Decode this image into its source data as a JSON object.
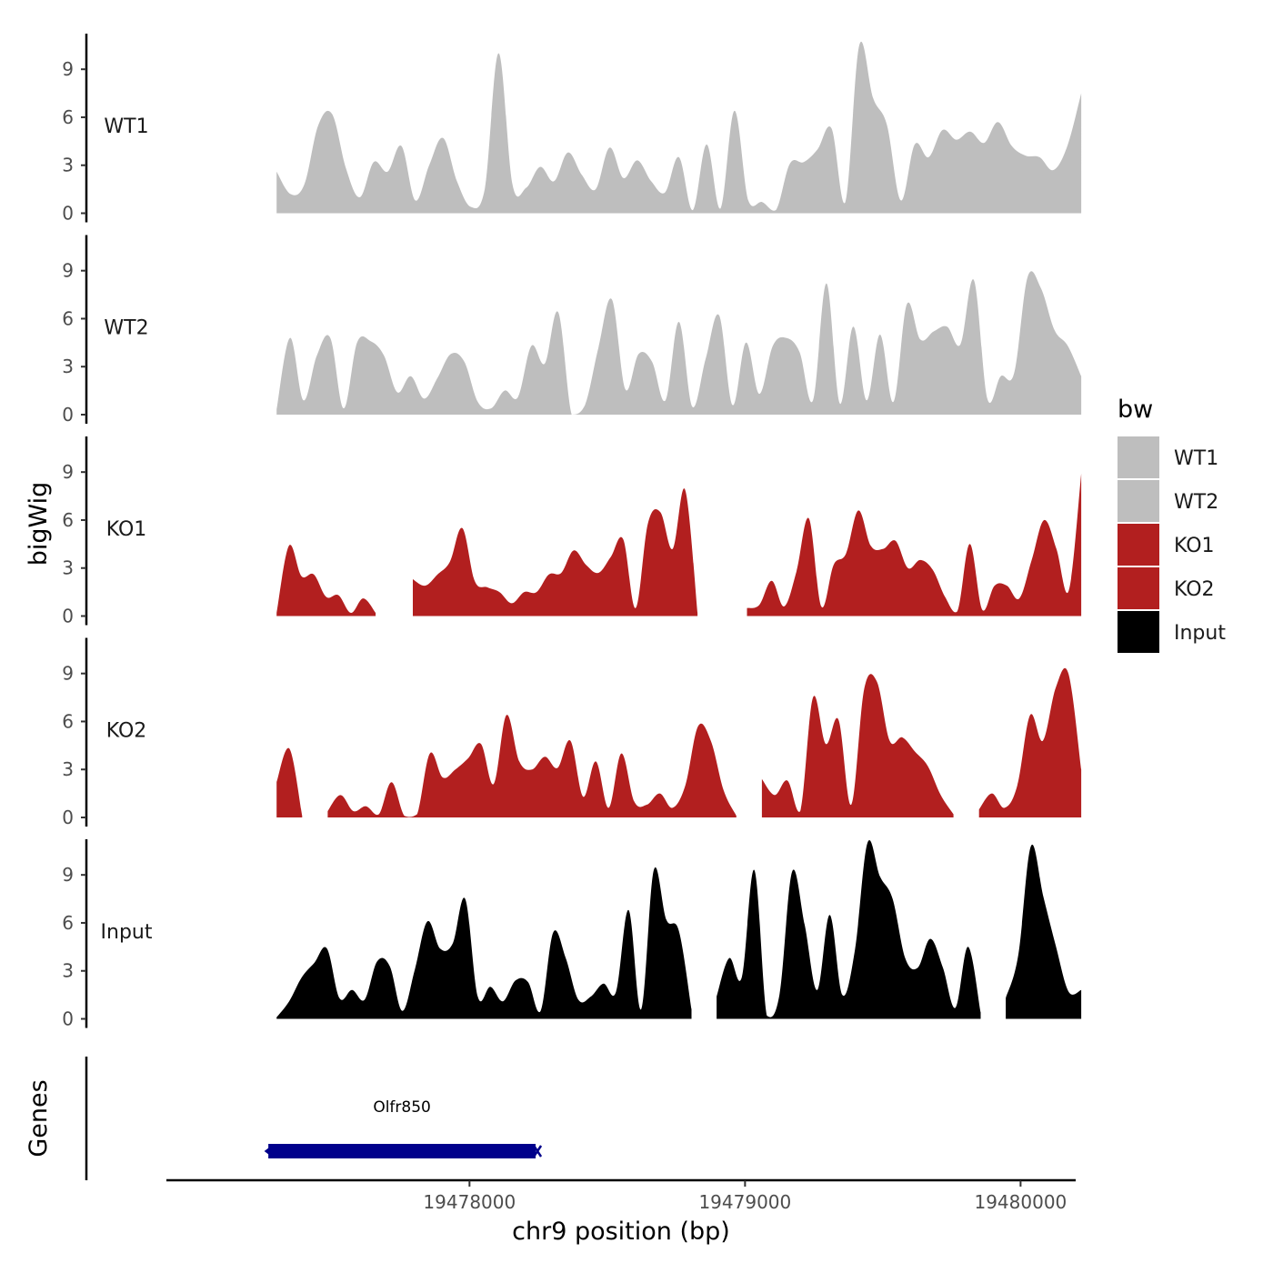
{
  "chart_data": {
    "type": "area",
    "title": "",
    "xlabel": "chr9 position (bp)",
    "ylabel": "bigWig",
    "genes_label": "Genes",
    "xlim": [
      19476900,
      19480200
    ],
    "x_ticks": [
      19478000,
      19479000,
      19480000
    ],
    "x_tick_labels": [
      "19478000",
      "19479000",
      "19480000"
    ],
    "ylim": [
      0,
      11
    ],
    "y_ticks": [
      0,
      3,
      6,
      9
    ],
    "y_tick_labels": [
      "0",
      "3",
      "6",
      "9"
    ],
    "x_start": 19477300,
    "x_end": 19480220,
    "sample_step_bp": 73,
    "tracks": [
      {
        "name": "WT1",
        "color": "#BEBEBE",
        "values": [
          2.6,
          1.2,
          1.8,
          5.5,
          6.2,
          2.8,
          1.0,
          3.2,
          2.6,
          4.2,
          0.8,
          3.0,
          4.7,
          2.0,
          0.4,
          1.5,
          10.0,
          1.8,
          1.6,
          2.9,
          2.0,
          3.8,
          2.4,
          1.5,
          4.1,
          2.2,
          3.3,
          2.0,
          1.3,
          3.5,
          0.2,
          4.3,
          0.3,
          6.4,
          0.8,
          0.7,
          0.2,
          3.1,
          3.2,
          4.0,
          5.3,
          0.7,
          10.5,
          7.2,
          5.5,
          0.8,
          4.3,
          3.5,
          5.2,
          4.6,
          5.1,
          4.4,
          5.7,
          4.2,
          3.6,
          3.5,
          2.7,
          4.2,
          7.5
        ]
      },
      {
        "name": "WT2",
        "color": "#BEBEBE",
        "values": [
          0.3,
          4.8,
          0.9,
          3.7,
          4.8,
          0.4,
          4.5,
          4.6,
          3.7,
          1.4,
          2.4,
          1.0,
          2.3,
          3.8,
          3.3,
          0.8,
          0.4,
          1.5,
          1.1,
          4.3,
          3.2,
          6.4,
          0.0,
          0.6,
          4.2,
          7.2,
          1.6,
          3.8,
          3.3,
          0.9,
          5.8,
          0.5,
          3.5,
          6.2,
          0.6,
          4.5,
          1.3,
          4.3,
          4.8,
          3.9,
          0.9,
          8.2,
          0.7,
          5.5,
          0.9,
          5.0,
          0.8,
          6.9,
          4.7,
          5.2,
          5.5,
          4.4,
          8.4,
          1.0,
          2.4,
          2.6,
          8.6,
          7.9,
          5.3,
          4.3,
          2.4
        ]
      },
      {
        "name": "KO1",
        "color": "#B21F1F",
        "values": [
          0.2,
          4.4,
          2.5,
          2.6,
          1.2,
          1.3,
          0.2,
          1.1,
          0.2,
          null,
          null,
          2.3,
          1.9,
          2.6,
          3.4,
          5.5,
          2.2,
          1.8,
          1.5,
          0.8,
          1.5,
          1.5,
          2.6,
          2.7,
          4.1,
          3.2,
          2.7,
          3.7,
          4.8,
          0.5,
          5.8,
          6.5,
          4.2,
          7.9,
          0.2,
          null,
          null,
          null,
          0.5,
          0.7,
          2.2,
          0.6,
          2.8,
          6.1,
          0.6,
          3.2,
          3.9,
          6.6,
          4.4,
          4.2,
          4.7,
          3.0,
          3.5,
          2.9,
          1.2,
          0.3,
          4.5,
          0.4,
          1.9,
          1.9,
          1.1,
          3.5,
          6.0,
          4.2,
          1.6,
          8.9
        ]
      },
      {
        "name": "KO2",
        "color": "#B21F1F",
        "values": [
          2.2,
          4.3,
          0.1,
          null,
          0.4,
          1.4,
          0.4,
          0.7,
          0.2,
          2.2,
          0.1,
          0.2,
          4.0,
          2.5,
          3.0,
          3.7,
          4.6,
          2.1,
          6.4,
          3.5,
          3.0,
          3.8,
          3.1,
          4.8,
          1.3,
          3.5,
          0.6,
          4.0,
          1.0,
          0.8,
          1.5,
          0.6,
          2.0,
          5.7,
          4.8,
          1.7,
          0.1,
          null,
          2.4,
          1.4,
          2.3,
          0.4,
          7.5,
          4.6,
          6.1,
          0.8,
          8.0,
          8.5,
          4.8,
          5.0,
          4.1,
          3.2,
          1.4,
          0.2,
          null,
          0.5,
          1.5,
          0.6,
          2.0,
          6.4,
          4.8,
          8.1,
          9.0,
          3.0
        ]
      },
      {
        "name": "Input",
        "color": "#000000",
        "values": [
          0.1,
          1.1,
          2.6,
          3.5,
          4.4,
          1.3,
          1.8,
          1.2,
          3.6,
          3.3,
          0.5,
          3.1,
          6.1,
          4.4,
          4.7,
          7.5,
          1.4,
          2.0,
          1.1,
          2.4,
          2.3,
          0.5,
          5.4,
          3.8,
          1.2,
          1.4,
          2.2,
          1.7,
          6.8,
          0.6,
          9.3,
          6.2,
          5.5,
          0.6,
          null,
          1.4,
          3.8,
          2.6,
          9.3,
          0.2,
          1.5,
          9.2,
          5.9,
          1.8,
          6.5,
          1.5,
          4.3,
          11.0,
          8.9,
          7.5,
          3.8,
          3.2,
          5.0,
          3.2,
          0.7,
          4.5,
          0.4,
          null,
          1.3,
          4.0,
          10.8,
          7.6,
          4.5,
          1.7,
          1.8
        ]
      }
    ],
    "legend": {
      "title": "bw",
      "position": "right",
      "entries": [
        {
          "label": "WT1",
          "color": "#BEBEBE"
        },
        {
          "label": "WT2",
          "color": "#BEBEBE"
        },
        {
          "label": "KO1",
          "color": "#B21F1F"
        },
        {
          "label": "KO2",
          "color": "#B21F1F"
        },
        {
          "label": "Input",
          "color": "#000000"
        }
      ]
    },
    "genes": [
      {
        "name": "Olfr850",
        "start": 19477270,
        "end": 19478240,
        "strand": "-",
        "color": "#00008B"
      }
    ],
    "grid": false
  }
}
